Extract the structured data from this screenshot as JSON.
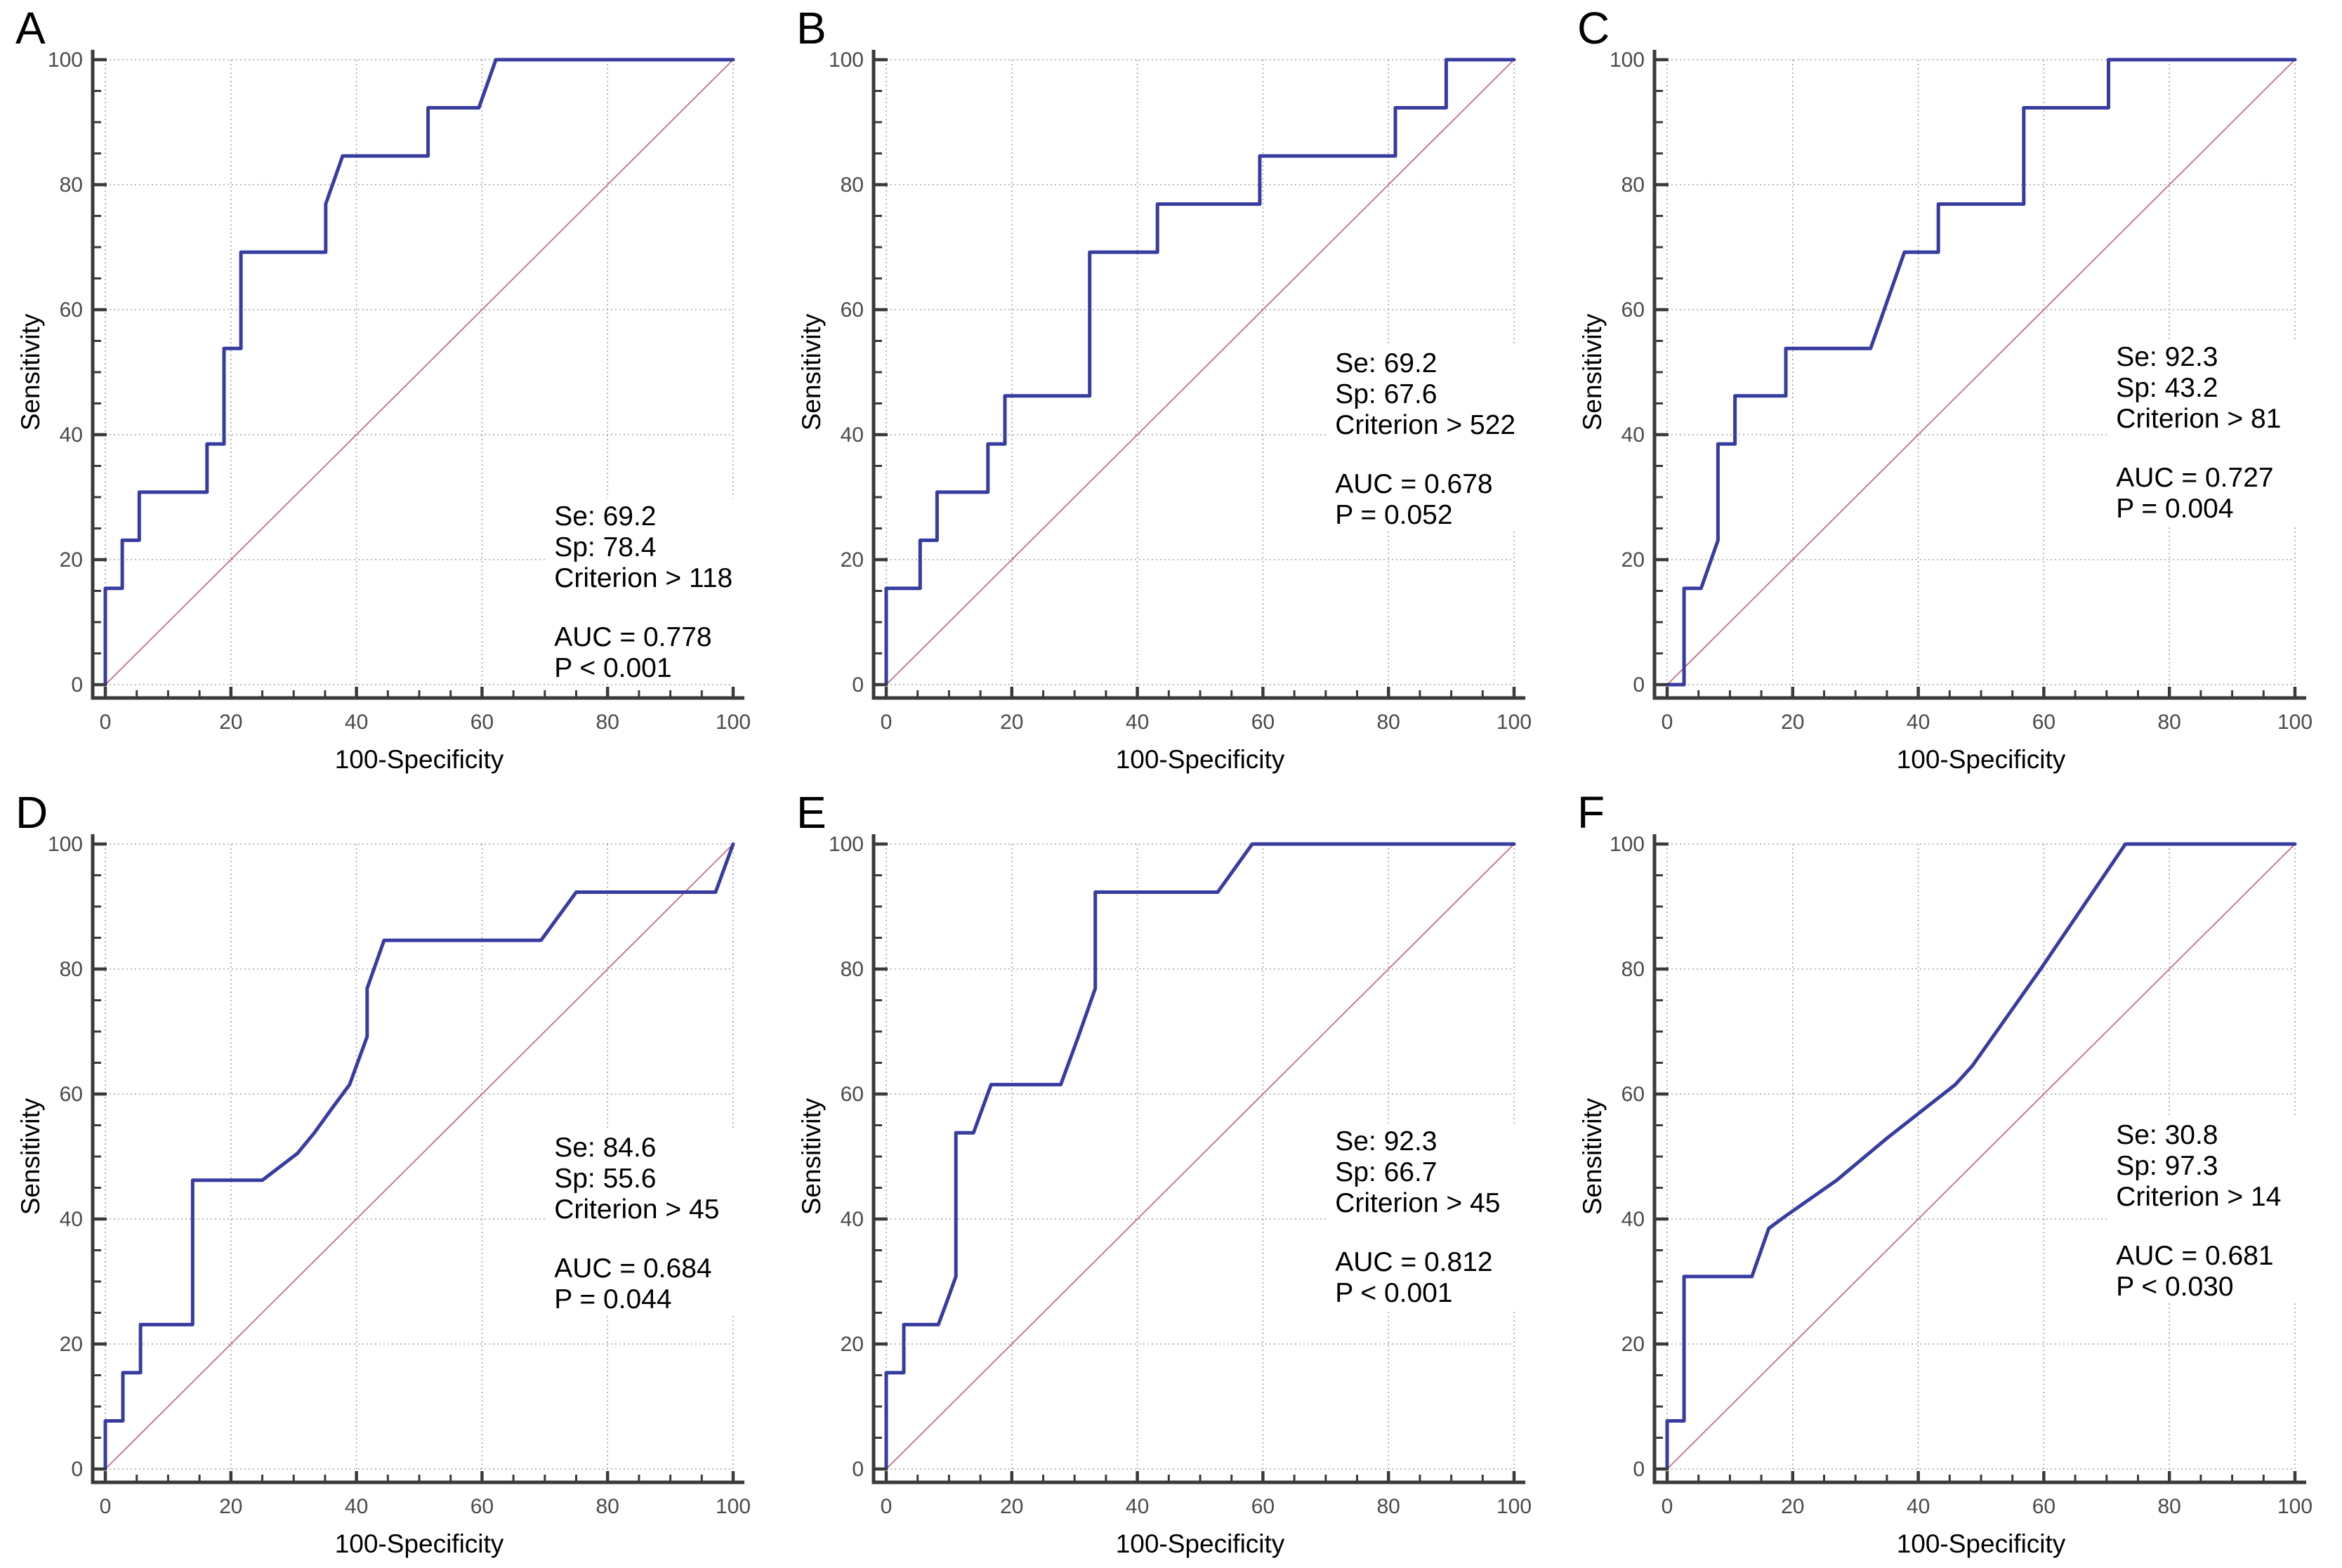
{
  "figure": {
    "background": "#ffffff",
    "xlabel": "100-Specificity",
    "ylabel": "Sensitivity",
    "tick_labels": [
      "0",
      "20",
      "40",
      "60",
      "80",
      "100"
    ],
    "ticks": [
      0,
      20,
      40,
      60,
      80,
      100
    ],
    "minor_tick_step": 5,
    "xlim": [
      0,
      100
    ],
    "ylim": [
      0,
      100
    ],
    "grid": true,
    "colors": {
      "curve": "#373ca0",
      "diagonal": "#c4717f",
      "grid": "#9a9a9a",
      "axis": "#3a3a3a",
      "tick_text": "#4a4a4a",
      "text": "#000000"
    }
  },
  "chart_data": [
    {
      "type": "line",
      "panel": "A",
      "xlabel": "100-Specificity",
      "ylabel": "Sensitivity",
      "xlim": [
        0,
        100
      ],
      "ylim": [
        0,
        100
      ],
      "annotation": {
        "se_label": "Se: 69.2",
        "sp_label": "Sp: 78.4",
        "criterion_label": "Criterion > 118",
        "auc_label": "AUC = 0.778",
        "p_label": "P < 0.001",
        "x": 71.5,
        "y": 25.5
      },
      "roc_points": [
        [
          0,
          0
        ],
        [
          0,
          15.4
        ],
        [
          2.7,
          15.4
        ],
        [
          2.7,
          23.1
        ],
        [
          5.4,
          23.1
        ],
        [
          5.4,
          30.8
        ],
        [
          16.2,
          30.8
        ],
        [
          16.2,
          38.5
        ],
        [
          18.9,
          38.5
        ],
        [
          18.9,
          53.8
        ],
        [
          21.6,
          53.8
        ],
        [
          21.6,
          69.2
        ],
        [
          35.1,
          69.2
        ],
        [
          35.1,
          76.9
        ],
        [
          37.8,
          84.6
        ],
        [
          51.4,
          84.6
        ],
        [
          51.4,
          92.3
        ],
        [
          59.5,
          92.3
        ],
        [
          62.2,
          100
        ],
        [
          100,
          100
        ]
      ]
    },
    {
      "type": "line",
      "panel": "B",
      "xlabel": "100-Specificity",
      "ylabel": "Sensitivity",
      "xlim": [
        0,
        100
      ],
      "ylim": [
        0,
        100
      ],
      "annotation": {
        "se_label": "Se: 69.2",
        "sp_label": "Sp: 67.6",
        "criterion_label": "Criterion > 522",
        "auc_label": "AUC = 0.678",
        "p_label": "P = 0.052",
        "x": 71.5,
        "y": 50
      },
      "roc_points": [
        [
          0,
          0
        ],
        [
          0,
          15.4
        ],
        [
          5.4,
          15.4
        ],
        [
          5.4,
          23.1
        ],
        [
          8.1,
          23.1
        ],
        [
          8.1,
          30.8
        ],
        [
          16.2,
          30.8
        ],
        [
          16.2,
          38.5
        ],
        [
          18.9,
          38.5
        ],
        [
          18.9,
          46.2
        ],
        [
          32.4,
          46.2
        ],
        [
          32.4,
          69.2
        ],
        [
          43.2,
          69.2
        ],
        [
          43.2,
          76.9
        ],
        [
          59.5,
          76.9
        ],
        [
          59.5,
          84.6
        ],
        [
          81.1,
          84.6
        ],
        [
          81.1,
          92.3
        ],
        [
          89.2,
          92.3
        ],
        [
          89.2,
          100
        ],
        [
          100,
          100
        ]
      ]
    },
    {
      "type": "line",
      "panel": "C",
      "xlabel": "100-Specificity",
      "ylabel": "Sensitivity",
      "xlim": [
        0,
        100
      ],
      "ylim": [
        0,
        100
      ],
      "annotation": {
        "se_label": "Se: 92.3",
        "sp_label": "Sp: 43.2",
        "criterion_label": "Criterion > 81",
        "auc_label": "AUC = 0.727",
        "p_label": "P = 0.004",
        "x": 71.5,
        "y": 51
      },
      "roc_points": [
        [
          0,
          0
        ],
        [
          2.7,
          0
        ],
        [
          2.7,
          15.4
        ],
        [
          5.4,
          15.4
        ],
        [
          8.1,
          23.1
        ],
        [
          8.1,
          38.5
        ],
        [
          10.8,
          38.5
        ],
        [
          10.8,
          46.2
        ],
        [
          18.9,
          46.2
        ],
        [
          18.9,
          53.8
        ],
        [
          32.4,
          53.8
        ],
        [
          37.8,
          69.2
        ],
        [
          43.2,
          69.2
        ],
        [
          43.2,
          76.9
        ],
        [
          56.8,
          76.9
        ],
        [
          56.8,
          92.3
        ],
        [
          70.3,
          92.3
        ],
        [
          70.3,
          100
        ],
        [
          100,
          100
        ]
      ]
    },
    {
      "type": "line",
      "panel": "D",
      "xlabel": "100-Specificity",
      "ylabel": "Sensitivity",
      "xlim": [
        0,
        100
      ],
      "ylim": [
        0,
        100
      ],
      "annotation": {
        "se_label": "Se: 84.6",
        "sp_label": "Sp: 55.6",
        "criterion_label": "Criterion > 45",
        "auc_label": "AUC = 0.684",
        "p_label": "P = 0.044",
        "x": 71.5,
        "y": 50
      },
      "roc_points": [
        [
          0,
          0
        ],
        [
          0,
          7.7
        ],
        [
          2.8,
          7.7
        ],
        [
          2.8,
          15.4
        ],
        [
          5.6,
          15.4
        ],
        [
          5.6,
          23.1
        ],
        [
          13.9,
          23.1
        ],
        [
          13.9,
          46.2
        ],
        [
          25,
          46.2
        ],
        [
          30.6,
          50.5
        ],
        [
          33.3,
          53.8
        ],
        [
          36.1,
          57.7
        ],
        [
          38.9,
          61.5
        ],
        [
          41.7,
          69.2
        ],
        [
          41.7,
          76.9
        ],
        [
          44.4,
          84.6
        ],
        [
          69.4,
          84.6
        ],
        [
          75,
          92.3
        ],
        [
          97.2,
          92.3
        ],
        [
          100,
          100
        ]
      ]
    },
    {
      "type": "line",
      "panel": "E",
      "xlabel": "100-Specificity",
      "ylabel": "Sensitivity",
      "xlim": [
        0,
        100
      ],
      "ylim": [
        0,
        100
      ],
      "annotation": {
        "se_label": "Se: 92.3",
        "sp_label": "Sp: 66.7",
        "criterion_label": "Criterion > 45",
        "auc_label": "AUC = 0.812",
        "p_label": "P < 0.001",
        "x": 71.5,
        "y": 51
      },
      "roc_points": [
        [
          0,
          0
        ],
        [
          0,
          15.4
        ],
        [
          2.8,
          15.4
        ],
        [
          2.8,
          23.1
        ],
        [
          8.3,
          23.1
        ],
        [
          9.7,
          26.9
        ],
        [
          11.1,
          30.8
        ],
        [
          11.1,
          53.8
        ],
        [
          13.9,
          53.8
        ],
        [
          16.7,
          61.5
        ],
        [
          27.8,
          61.5
        ],
        [
          30.6,
          69.2
        ],
        [
          33.3,
          76.9
        ],
        [
          33.3,
          92.3
        ],
        [
          52.8,
          92.3
        ],
        [
          58.3,
          100
        ],
        [
          100,
          100
        ]
      ]
    },
    {
      "type": "line",
      "panel": "F",
      "xlabel": "100-Specificity",
      "ylabel": "Sensitivity",
      "xlim": [
        0,
        100
      ],
      "ylim": [
        0,
        100
      ],
      "annotation": {
        "se_label": "Se: 30.8",
        "sp_label": "Sp: 97.3",
        "criterion_label": "Criterion > 14",
        "auc_label": "AUC = 0.681",
        "p_label": "P < 0.030",
        "x": 71.5,
        "y": 52
      },
      "roc_points": [
        [
          0,
          0
        ],
        [
          0,
          7.7
        ],
        [
          2.7,
          7.7
        ],
        [
          2.7,
          30.8
        ],
        [
          13.5,
          30.8
        ],
        [
          16.2,
          38.5
        ],
        [
          18.9,
          40.5
        ],
        [
          27,
          46.2
        ],
        [
          35.1,
          53
        ],
        [
          45.9,
          61.5
        ],
        [
          48.6,
          64.5
        ],
        [
          59.5,
          80
        ],
        [
          73,
          100
        ],
        [
          100,
          100
        ]
      ]
    }
  ]
}
